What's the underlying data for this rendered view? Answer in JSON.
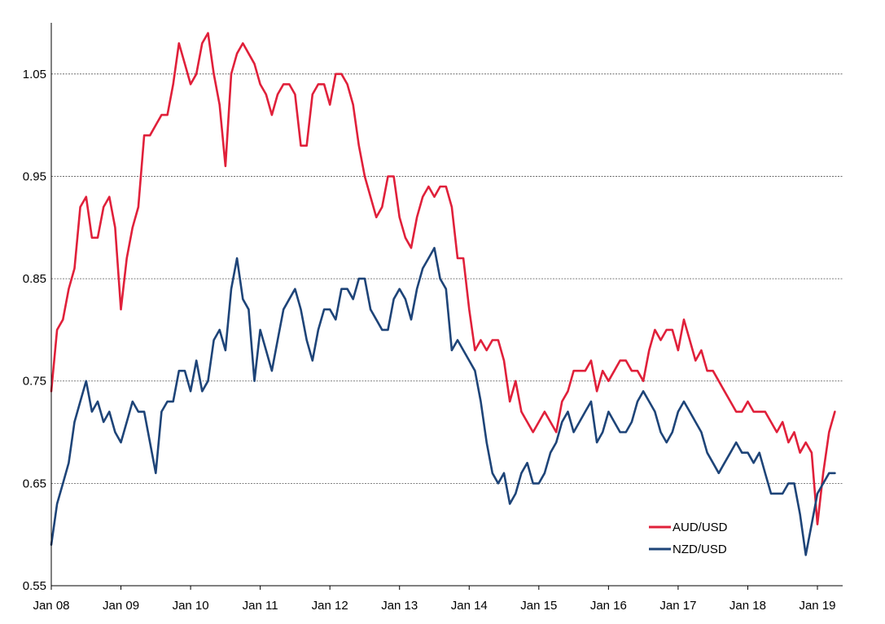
{
  "chart_data": {
    "type": "line",
    "title": "",
    "xlabel": "",
    "ylabel": "",
    "x_ticks": [
      "Jan 08",
      "Jan 09",
      "Jan 10",
      "Jan 11",
      "Jan 12",
      "Jan 13",
      "Jan 14",
      "Jan 15",
      "Jan 16",
      "Jan 17",
      "Jan 18",
      "Jan 19"
    ],
    "y_ticks": [
      "0.55",
      "0.65",
      "0.75",
      "0.85",
      "0.95",
      "1.05"
    ],
    "ylim": [
      0.55,
      1.1
    ],
    "xlim": [
      "2008-01",
      "2019-04"
    ],
    "grid": "horizontal dashed",
    "legend_position": "bottom-right",
    "x": [
      "2008-01",
      "2008-02",
      "2008-03",
      "2008-04",
      "2008-05",
      "2008-06",
      "2008-07",
      "2008-08",
      "2008-09",
      "2008-10",
      "2008-11",
      "2008-12",
      "2009-01",
      "2009-02",
      "2009-03",
      "2009-04",
      "2009-05",
      "2009-06",
      "2009-07",
      "2009-08",
      "2009-09",
      "2009-10",
      "2009-11",
      "2009-12",
      "2010-01",
      "2010-02",
      "2010-03",
      "2010-04",
      "2010-05",
      "2010-06",
      "2010-07",
      "2010-08",
      "2010-09",
      "2010-10",
      "2010-11",
      "2010-12",
      "2011-01",
      "2011-02",
      "2011-03",
      "2011-04",
      "2011-05",
      "2011-06",
      "2011-07",
      "2011-08",
      "2011-09",
      "2011-10",
      "2011-11",
      "2011-12",
      "2012-01",
      "2012-02",
      "2012-03",
      "2012-04",
      "2012-05",
      "2012-06",
      "2012-07",
      "2012-08",
      "2012-09",
      "2012-10",
      "2012-11",
      "2012-12",
      "2013-01",
      "2013-02",
      "2013-03",
      "2013-04",
      "2013-05",
      "2013-06",
      "2013-07",
      "2013-08",
      "2013-09",
      "2013-10",
      "2013-11",
      "2013-12",
      "2014-01",
      "2014-02",
      "2014-03",
      "2014-04",
      "2014-05",
      "2014-06",
      "2014-07",
      "2014-08",
      "2014-09",
      "2014-10",
      "2014-11",
      "2014-12",
      "2015-01",
      "2015-02",
      "2015-03",
      "2015-04",
      "2015-05",
      "2015-06",
      "2015-07",
      "2015-08",
      "2015-09",
      "2015-10",
      "2015-11",
      "2015-12",
      "2016-01",
      "2016-02",
      "2016-03",
      "2016-04",
      "2016-05",
      "2016-06",
      "2016-07",
      "2016-08",
      "2016-09",
      "2016-10",
      "2016-11",
      "2016-12",
      "2017-01",
      "2017-02",
      "2017-03",
      "2017-04",
      "2017-05",
      "2017-06",
      "2017-07",
      "2017-08",
      "2017-09",
      "2017-10",
      "2017-11",
      "2017-12",
      "2018-01",
      "2018-02",
      "2018-03",
      "2018-04",
      "2018-05",
      "2018-06",
      "2018-07",
      "2018-08",
      "2018-09",
      "2018-10",
      "2018-11",
      "2018-12",
      "2019-01",
      "2019-02",
      "2019-03",
      "2019-04"
    ],
    "series": [
      {
        "name": "AUD/USD",
        "color": "#E0203A",
        "values": [
          0.74,
          0.8,
          0.81,
          0.84,
          0.86,
          0.92,
          0.93,
          0.89,
          0.89,
          0.92,
          0.93,
          0.9,
          0.82,
          0.87,
          0.9,
          0.92,
          0.99,
          0.99,
          1.0,
          1.01,
          1.01,
          1.04,
          1.08,
          1.06,
          1.04,
          1.05,
          1.08,
          1.09,
          1.05,
          1.02,
          0.96,
          1.05,
          1.07,
          1.08,
          1.07,
          1.06,
          1.04,
          1.03,
          1.01,
          1.03,
          1.04,
          1.04,
          1.03,
          0.98,
          0.98,
          1.03,
          1.04,
          1.04,
          1.02,
          1.05,
          1.05,
          1.04,
          1.02,
          0.98,
          0.95,
          0.93,
          0.91,
          0.92,
          0.95,
          0.95,
          0.91,
          0.89,
          0.88,
          0.91,
          0.93,
          0.94,
          0.93,
          0.94,
          0.94,
          0.92,
          0.87,
          0.87,
          0.82,
          0.78,
          0.79,
          0.78,
          0.79,
          0.79,
          0.77,
          0.73,
          0.75,
          0.72,
          0.71,
          0.7,
          0.71,
          0.72,
          0.71,
          0.7,
          0.73,
          0.74,
          0.76,
          0.76,
          0.76,
          0.77,
          0.74,
          0.76,
          0.75,
          0.76,
          0.77,
          0.77,
          0.76,
          0.76,
          0.75,
          0.78,
          0.8,
          0.79,
          0.8,
          0.8,
          0.78,
          0.81,
          0.79,
          0.77,
          0.78,
          0.76,
          0.76,
          0.75,
          0.74,
          0.73,
          0.72,
          0.72,
          0.73,
          0.72,
          0.72,
          0.72,
          0.71,
          0.7,
          0.71,
          0.69,
          0.7,
          0.68,
          0.69,
          0.68,
          0.61,
          0.66,
          0.7,
          0.72
        ]
      },
      {
        "name": "NZD/USD",
        "color": "#1E4478",
        "values": [
          0.59,
          0.63,
          0.65,
          0.67,
          0.71,
          0.73,
          0.75,
          0.72,
          0.73,
          0.71,
          0.72,
          0.7,
          0.69,
          0.71,
          0.73,
          0.72,
          0.72,
          0.69,
          0.66,
          0.72,
          0.73,
          0.73,
          0.76,
          0.76,
          0.74,
          0.77,
          0.74,
          0.75,
          0.79,
          0.8,
          0.78,
          0.84,
          0.87,
          0.83,
          0.82,
          0.75,
          0.8,
          0.78,
          0.76,
          0.79,
          0.82,
          0.83,
          0.84,
          0.82,
          0.79,
          0.77,
          0.8,
          0.82,
          0.82,
          0.81,
          0.84,
          0.84,
          0.83,
          0.85,
          0.85,
          0.82,
          0.81,
          0.8,
          0.8,
          0.83,
          0.84,
          0.83,
          0.81,
          0.84,
          0.86,
          0.87,
          0.88,
          0.85,
          0.84,
          0.78,
          0.79,
          0.78,
          0.77,
          0.76,
          0.73,
          0.69,
          0.66,
          0.65,
          0.66,
          0.63,
          0.64,
          0.66,
          0.67,
          0.65,
          0.65,
          0.66,
          0.68,
          0.69,
          0.71,
          0.72,
          0.7,
          0.71,
          0.72,
          0.73,
          0.69,
          0.7,
          0.72,
          0.71,
          0.7,
          0.7,
          0.71,
          0.73,
          0.74,
          0.73,
          0.72,
          0.7,
          0.69,
          0.7,
          0.72,
          0.73,
          0.72,
          0.71,
          0.7,
          0.68,
          0.67,
          0.66,
          0.67,
          0.68,
          0.69,
          0.68,
          0.68,
          0.67,
          0.68,
          0.66,
          0.64,
          0.64,
          0.64,
          0.65,
          0.65,
          0.62,
          0.58,
          0.61,
          0.64,
          0.65,
          0.66,
          0.66
        ]
      }
    ]
  }
}
